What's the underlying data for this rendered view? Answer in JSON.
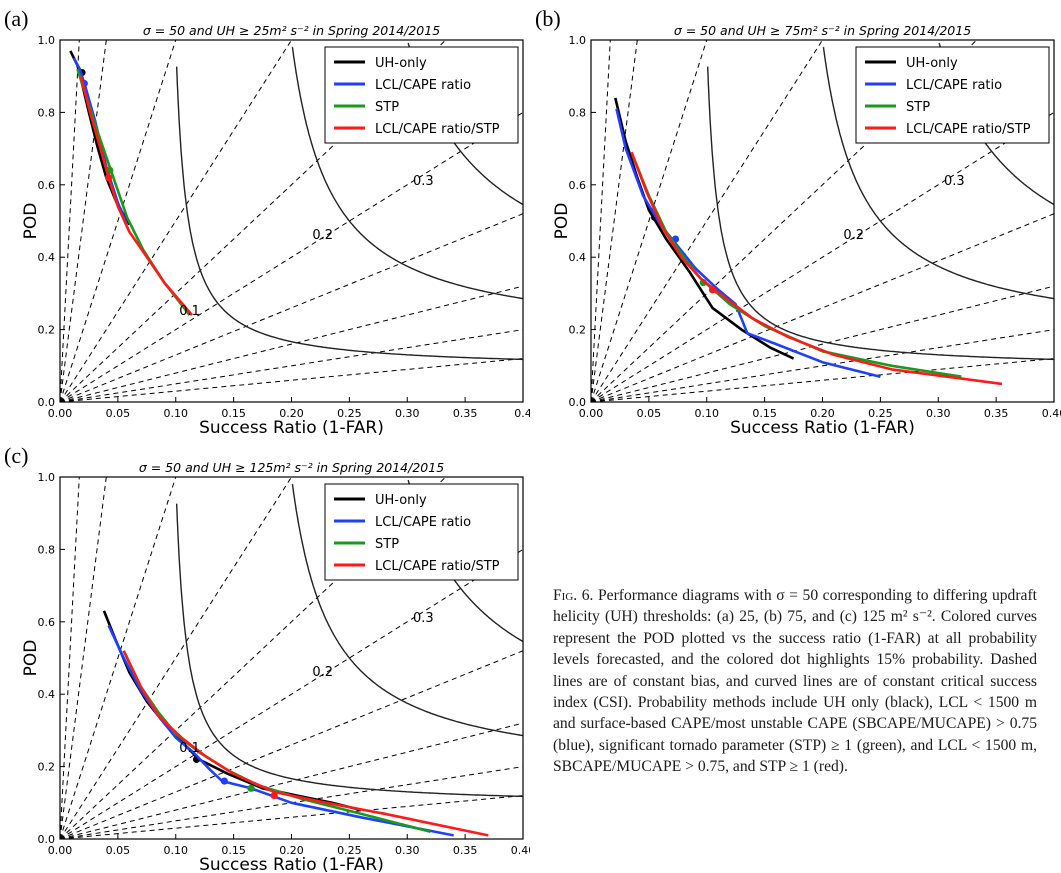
{
  "colors": {
    "uh_only": "#000000",
    "lcl_cape": "#1f3fff",
    "stp": "#1a9a1a",
    "combined": "#ff1a1a",
    "axis": "#000000",
    "bias_lines": "#000000",
    "csi_lines": "#222222"
  },
  "legend_labels": [
    "UH-only",
    "LCL/CAPE ratio",
    "STP",
    "LCL/CAPE ratio/STP"
  ],
  "caption": {
    "figure_label": "Fig. 6.",
    "text": "Performance diagrams with σ = 50 corresponding to differing updraft helicity (UH) thresholds: (a) 25, (b) 75, and (c) 125 m² s⁻². Colored curves represent the POD plotted vs the success ratio (1-FAR) at all probability levels forecasted, and the colored dot highlights 15% probability. Dashed lines are of constant bias, and curved lines are of constant critical success index (CSI). Probability methods include UH only (black), LCL < 1500 m and surface-based CAPE/most unstable CAPE (SBCAPE/MUCAPE) > 0.75 (blue), significant tornado parameter (STP) ≥ 1 (green), and LCL < 1500 m, SBCAPE/MUCAPE > 0.75, and STP ≥ 1 (red)."
  },
  "chart_data": [
    {
      "panel": "(a)",
      "type": "line",
      "title": "σ = 50 and UH ≥ 25m² s⁻²  in Spring 2014/2015",
      "xlabel": "Success Ratio (1-FAR)",
      "ylabel": "POD",
      "xlim": [
        0,
        0.4
      ],
      "ylim": [
        0,
        1.0
      ],
      "xticks": [
        "0.00",
        "0.05",
        "0.10",
        "0.15",
        "0.20",
        "0.25",
        "0.30",
        "0.35",
        "0.4"
      ],
      "yticks": [
        "0.0",
        "0.2",
        "0.4",
        "0.6",
        "0.8",
        "1.0"
      ],
      "csi_labels": [
        {
          "text": "0.1",
          "x": 0.103,
          "y": 0.24
        },
        {
          "text": "0.2",
          "x": 0.218,
          "y": 0.45
        },
        {
          "text": "0.3",
          "x": 0.305,
          "y": 0.6
        }
      ],
      "legend_position": "top-right",
      "series": [
        {
          "name": "UH-only",
          "color": "#000000",
          "x": [
            0.009,
            0.015,
            0.019,
            0.025,
            0.032,
            0.04,
            0.049,
            0.06
          ],
          "y": [
            0.97,
            0.93,
            0.88,
            0.8,
            0.71,
            0.62,
            0.55,
            0.49
          ],
          "dot": [
            0.019,
            0.91
          ]
        },
        {
          "name": "LCL/CAPE ratio",
          "color": "#1f3fff",
          "x": [
            0.012,
            0.017,
            0.022,
            0.03,
            0.04,
            0.05,
            0.058
          ],
          "y": [
            0.95,
            0.92,
            0.87,
            0.78,
            0.65,
            0.55,
            0.49
          ],
          "dot": [
            0.021,
            0.88
          ]
        },
        {
          "name": "STP",
          "color": "#1a9a1a",
          "x": [
            0.015,
            0.022,
            0.03,
            0.044,
            0.058,
            0.072,
            0.09,
            0.112
          ],
          "y": [
            0.92,
            0.85,
            0.77,
            0.64,
            0.51,
            0.42,
            0.33,
            0.24
          ],
          "dot": [
            0.043,
            0.64
          ]
        },
        {
          "name": "LCL/CAPE ratio/STP",
          "color": "#ff1a1a",
          "x": [
            0.018,
            0.026,
            0.035,
            0.042,
            0.05,
            0.06,
            0.073,
            0.09,
            0.114
          ],
          "y": [
            0.9,
            0.8,
            0.7,
            0.62,
            0.54,
            0.47,
            0.41,
            0.33,
            0.24
          ],
          "dot": [
            0.042,
            0.62
          ]
        }
      ]
    },
    {
      "panel": "(b)",
      "type": "line",
      "title": "σ = 50 and UH ≥ 75m² s⁻²  in Spring 2014/2015",
      "xlabel": "Success Ratio (1-FAR)",
      "ylabel": "POD",
      "xlim": [
        0,
        0.4
      ],
      "ylim": [
        0,
        1.0
      ],
      "xticks": [
        "0.00",
        "0.05",
        "0.10",
        "0.15",
        "0.20",
        "0.25",
        "0.30",
        "0.35",
        "0.40"
      ],
      "yticks": [
        "0.0",
        "0.2",
        "0.4",
        "0.6",
        "0.8",
        "1.0"
      ],
      "csi_labels": [
        {
          "text": "0.2",
          "x": 0.218,
          "y": 0.45
        },
        {
          "text": "0.3",
          "x": 0.305,
          "y": 0.6
        }
      ],
      "legend_position": "top-right",
      "series": [
        {
          "name": "UH-only",
          "color": "#000000",
          "x": [
            0.021,
            0.03,
            0.04,
            0.05,
            0.065,
            0.085,
            0.105,
            0.13,
            0.155,
            0.175
          ],
          "y": [
            0.84,
            0.72,
            0.62,
            0.53,
            0.45,
            0.36,
            0.26,
            0.2,
            0.15,
            0.12
          ],
          "dot": [
            0.055,
            0.51
          ]
        },
        {
          "name": "LCL/CAPE ratio",
          "color": "#1f3fff",
          "x": [
            0.022,
            0.03,
            0.045,
            0.06,
            0.075,
            0.09,
            0.11,
            0.125,
            0.135,
            0.16,
            0.2,
            0.25
          ],
          "y": [
            0.81,
            0.7,
            0.57,
            0.49,
            0.43,
            0.37,
            0.31,
            0.27,
            0.19,
            0.16,
            0.11,
            0.07
          ],
          "dot": [
            0.073,
            0.45
          ]
        },
        {
          "name": "STP",
          "color": "#1a9a1a",
          "x": [
            0.035,
            0.05,
            0.065,
            0.08,
            0.095,
            0.12,
            0.15,
            0.2,
            0.26,
            0.32
          ],
          "y": [
            0.69,
            0.57,
            0.47,
            0.4,
            0.34,
            0.27,
            0.21,
            0.14,
            0.1,
            0.07
          ],
          "dot": [
            0.097,
            0.33
          ]
        },
        {
          "name": "LCL/CAPE ratio/STP",
          "color": "#ff1a1a",
          "x": [
            0.035,
            0.048,
            0.062,
            0.078,
            0.095,
            0.115,
            0.14,
            0.17,
            0.21,
            0.26,
            0.355
          ],
          "y": [
            0.69,
            0.58,
            0.48,
            0.4,
            0.34,
            0.29,
            0.23,
            0.18,
            0.13,
            0.09,
            0.05
          ],
          "dot": [
            0.105,
            0.31
          ]
        }
      ]
    },
    {
      "panel": "(c)",
      "type": "line",
      "title": "σ = 50 and UH ≥ 125m² s⁻²  in Spring 2014/2015",
      "xlabel": "Success Ratio (1-FAR)",
      "ylabel": "POD",
      "xlim": [
        0,
        0.4
      ],
      "ylim": [
        0,
        1.0
      ],
      "xticks": [
        "0.00",
        "0.05",
        "0.10",
        "0.15",
        "0.20",
        "0.25",
        "0.30",
        "0.35",
        "0.40"
      ],
      "yticks": [
        "0.0",
        "0.2",
        "0.4",
        "0.6",
        "0.8",
        "1.0"
      ],
      "csi_labels": [
        {
          "text": "0.1",
          "x": 0.103,
          "y": 0.24
        },
        {
          "text": "0.2",
          "x": 0.218,
          "y": 0.45
        },
        {
          "text": "0.3",
          "x": 0.305,
          "y": 0.6
        }
      ],
      "legend_position": "top-right",
      "series": [
        {
          "name": "UH-only",
          "color": "#000000",
          "x": [
            0.038,
            0.048,
            0.06,
            0.075,
            0.09,
            0.105,
            0.12,
            0.145,
            0.175,
            0.205,
            0.235,
            0.26
          ],
          "y": [
            0.63,
            0.55,
            0.46,
            0.38,
            0.32,
            0.27,
            0.22,
            0.18,
            0.14,
            0.12,
            0.1,
            0.08
          ],
          "dot": [
            0.118,
            0.22
          ]
        },
        {
          "name": "LCL/CAPE ratio",
          "color": "#1f3fff",
          "x": [
            0.042,
            0.055,
            0.07,
            0.085,
            0.1,
            0.115,
            0.13,
            0.14,
            0.165,
            0.2,
            0.26,
            0.34
          ],
          "y": [
            0.59,
            0.5,
            0.41,
            0.34,
            0.28,
            0.24,
            0.19,
            0.16,
            0.14,
            0.1,
            0.06,
            0.01
          ],
          "dot": [
            0.142,
            0.16
          ]
        },
        {
          "name": "STP",
          "color": "#1a9a1a",
          "x": [
            0.055,
            0.07,
            0.085,
            0.1,
            0.12,
            0.145,
            0.17,
            0.21,
            0.26,
            0.32
          ],
          "y": [
            0.52,
            0.42,
            0.35,
            0.29,
            0.24,
            0.19,
            0.15,
            0.11,
            0.07,
            0.02
          ],
          "dot": [
            0.165,
            0.14
          ]
        },
        {
          "name": "LCL/CAPE ratio/STP",
          "color": "#ff1a1a",
          "x": [
            0.055,
            0.07,
            0.085,
            0.105,
            0.125,
            0.15,
            0.185,
            0.23,
            0.28,
            0.37
          ],
          "y": [
            0.52,
            0.42,
            0.34,
            0.28,
            0.23,
            0.18,
            0.13,
            0.1,
            0.07,
            0.01
          ],
          "dot": [
            0.185,
            0.12
          ]
        }
      ]
    }
  ]
}
